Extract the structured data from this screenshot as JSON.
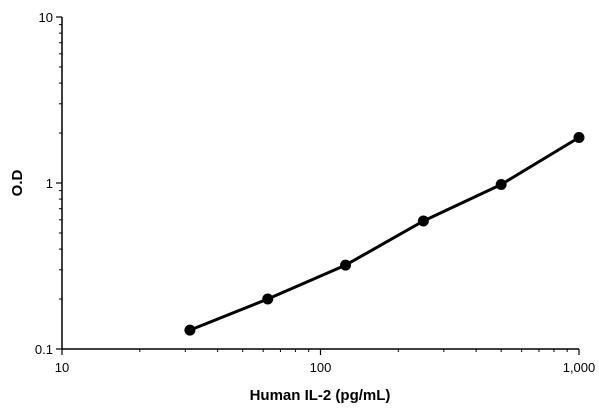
{
  "chart_data": {
    "type": "line",
    "title": "",
    "xlabel": "Human IL-2 (pg/mL)",
    "ylabel": "O.D",
    "x_scale": "log",
    "y_scale": "log",
    "xlim": [
      10,
      1000
    ],
    "ylim": [
      0.1,
      10
    ],
    "x_ticks": [
      {
        "value": 10,
        "label": "10"
      },
      {
        "value": 100,
        "label": "100"
      },
      {
        "value": 1000,
        "label": "1,000"
      }
    ],
    "y_ticks": [
      {
        "value": 0.1,
        "label": "0.1"
      },
      {
        "value": 1,
        "label": "1"
      },
      {
        "value": 10,
        "label": "10"
      }
    ],
    "grid": false,
    "legend": "none",
    "series": [
      {
        "color": "#000000",
        "marker": "circle",
        "x": [
          31.25,
          62.5,
          125,
          250,
          500,
          1000
        ],
        "y": [
          0.13,
          0.2,
          0.32,
          0.59,
          0.98,
          1.88
        ]
      }
    ]
  }
}
